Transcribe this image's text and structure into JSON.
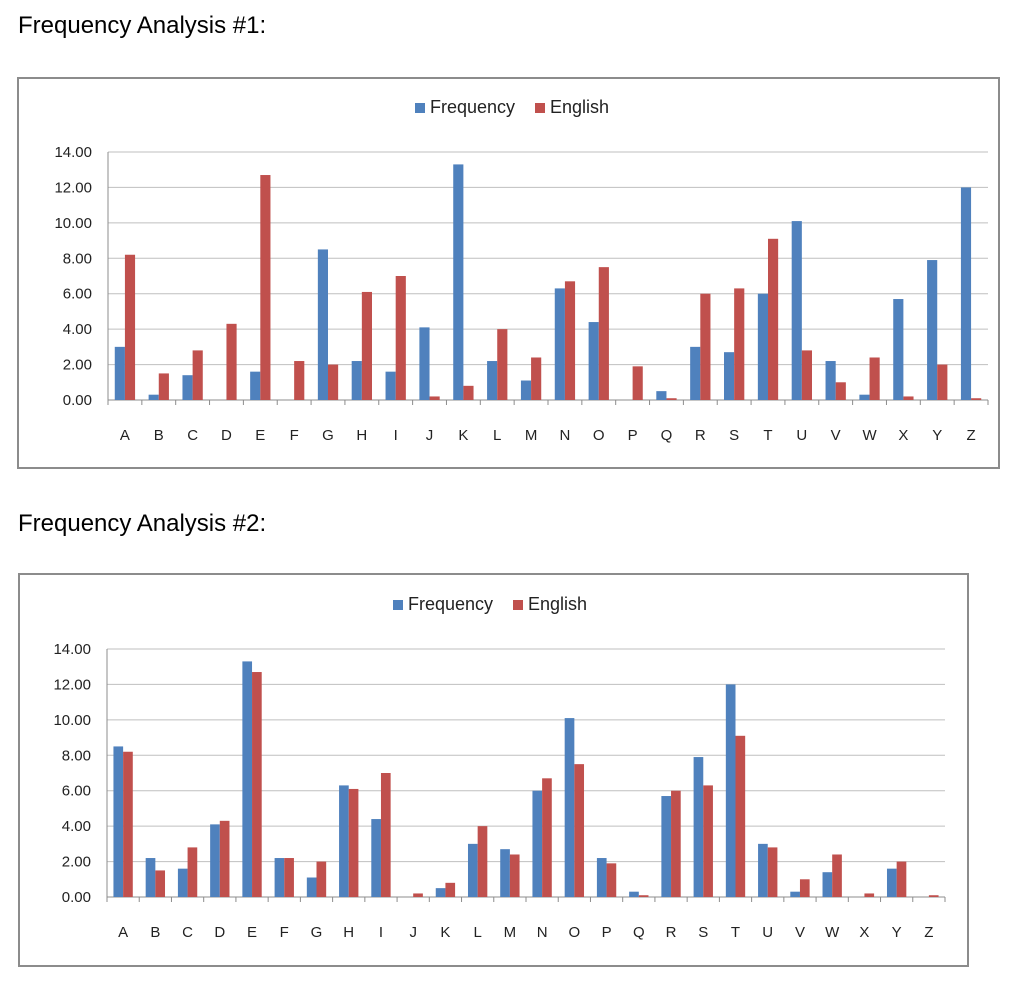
{
  "charts_titles": [
    "Frequency Analysis #1:",
    "Frequency Analysis #2:"
  ],
  "chart_data": [
    {
      "type": "bar",
      "title": "Frequency Analysis #1:",
      "categories": [
        "A",
        "B",
        "C",
        "D",
        "E",
        "F",
        "G",
        "H",
        "I",
        "J",
        "K",
        "L",
        "M",
        "N",
        "O",
        "P",
        "Q",
        "R",
        "S",
        "T",
        "U",
        "V",
        "W",
        "X",
        "Y",
        "Z"
      ],
      "series": [
        {
          "name": "Frequency",
          "color": "#4f81bd",
          "values": [
            3.0,
            0.3,
            1.4,
            0,
            1.6,
            0,
            8.5,
            2.2,
            1.6,
            4.1,
            13.3,
            2.2,
            1.1,
            6.3,
            4.4,
            0,
            0.5,
            3.0,
            2.7,
            6.0,
            10.1,
            2.2,
            0.3,
            5.7,
            7.9,
            12.0
          ]
        },
        {
          "name": "English",
          "color": "#c0504d",
          "values": [
            8.2,
            1.5,
            2.8,
            4.3,
            12.7,
            2.2,
            2.0,
            6.1,
            7.0,
            0.2,
            0.8,
            4.0,
            2.4,
            6.7,
            7.5,
            1.9,
            0.1,
            6.0,
            6.3,
            9.1,
            2.8,
            1.0,
            2.4,
            0.2,
            2.0,
            0.1
          ]
        }
      ],
      "yticks": [
        "0.00",
        "2.00",
        "4.00",
        "6.00",
        "8.00",
        "10.00",
        "12.00",
        "14.00"
      ],
      "ylim": [
        0,
        14
      ],
      "xlabel": "",
      "ylabel": "",
      "legend_position": "top-center",
      "grid": true
    },
    {
      "type": "bar",
      "title": "Frequency Analysis #2:",
      "categories": [
        "A",
        "B",
        "C",
        "D",
        "E",
        "F",
        "G",
        "H",
        "I",
        "J",
        "K",
        "L",
        "M",
        "N",
        "O",
        "P",
        "Q",
        "R",
        "S",
        "T",
        "U",
        "V",
        "W",
        "X",
        "Y",
        "Z"
      ],
      "series": [
        {
          "name": "Frequency",
          "color": "#4f81bd",
          "values": [
            8.5,
            2.2,
            1.6,
            4.1,
            13.3,
            2.2,
            1.1,
            6.3,
            4.4,
            0,
            0.5,
            3.0,
            2.7,
            6.0,
            10.1,
            2.2,
            0.3,
            5.7,
            7.9,
            12.0,
            3.0,
            0.3,
            1.4,
            0,
            1.6,
            0
          ]
        },
        {
          "name": "English",
          "color": "#c0504d",
          "values": [
            8.2,
            1.5,
            2.8,
            4.3,
            12.7,
            2.2,
            2.0,
            6.1,
            7.0,
            0.2,
            0.8,
            4.0,
            2.4,
            6.7,
            7.5,
            1.9,
            0.1,
            6.0,
            6.3,
            9.1,
            2.8,
            1.0,
            2.4,
            0.2,
            2.0,
            0.1
          ]
        }
      ],
      "yticks": [
        "0.00",
        "2.00",
        "4.00",
        "6.00",
        "8.00",
        "10.00",
        "12.00",
        "14.00"
      ],
      "ylim": [
        0,
        14
      ],
      "xlabel": "",
      "ylabel": "",
      "legend_position": "top-center",
      "grid": true
    }
  ]
}
